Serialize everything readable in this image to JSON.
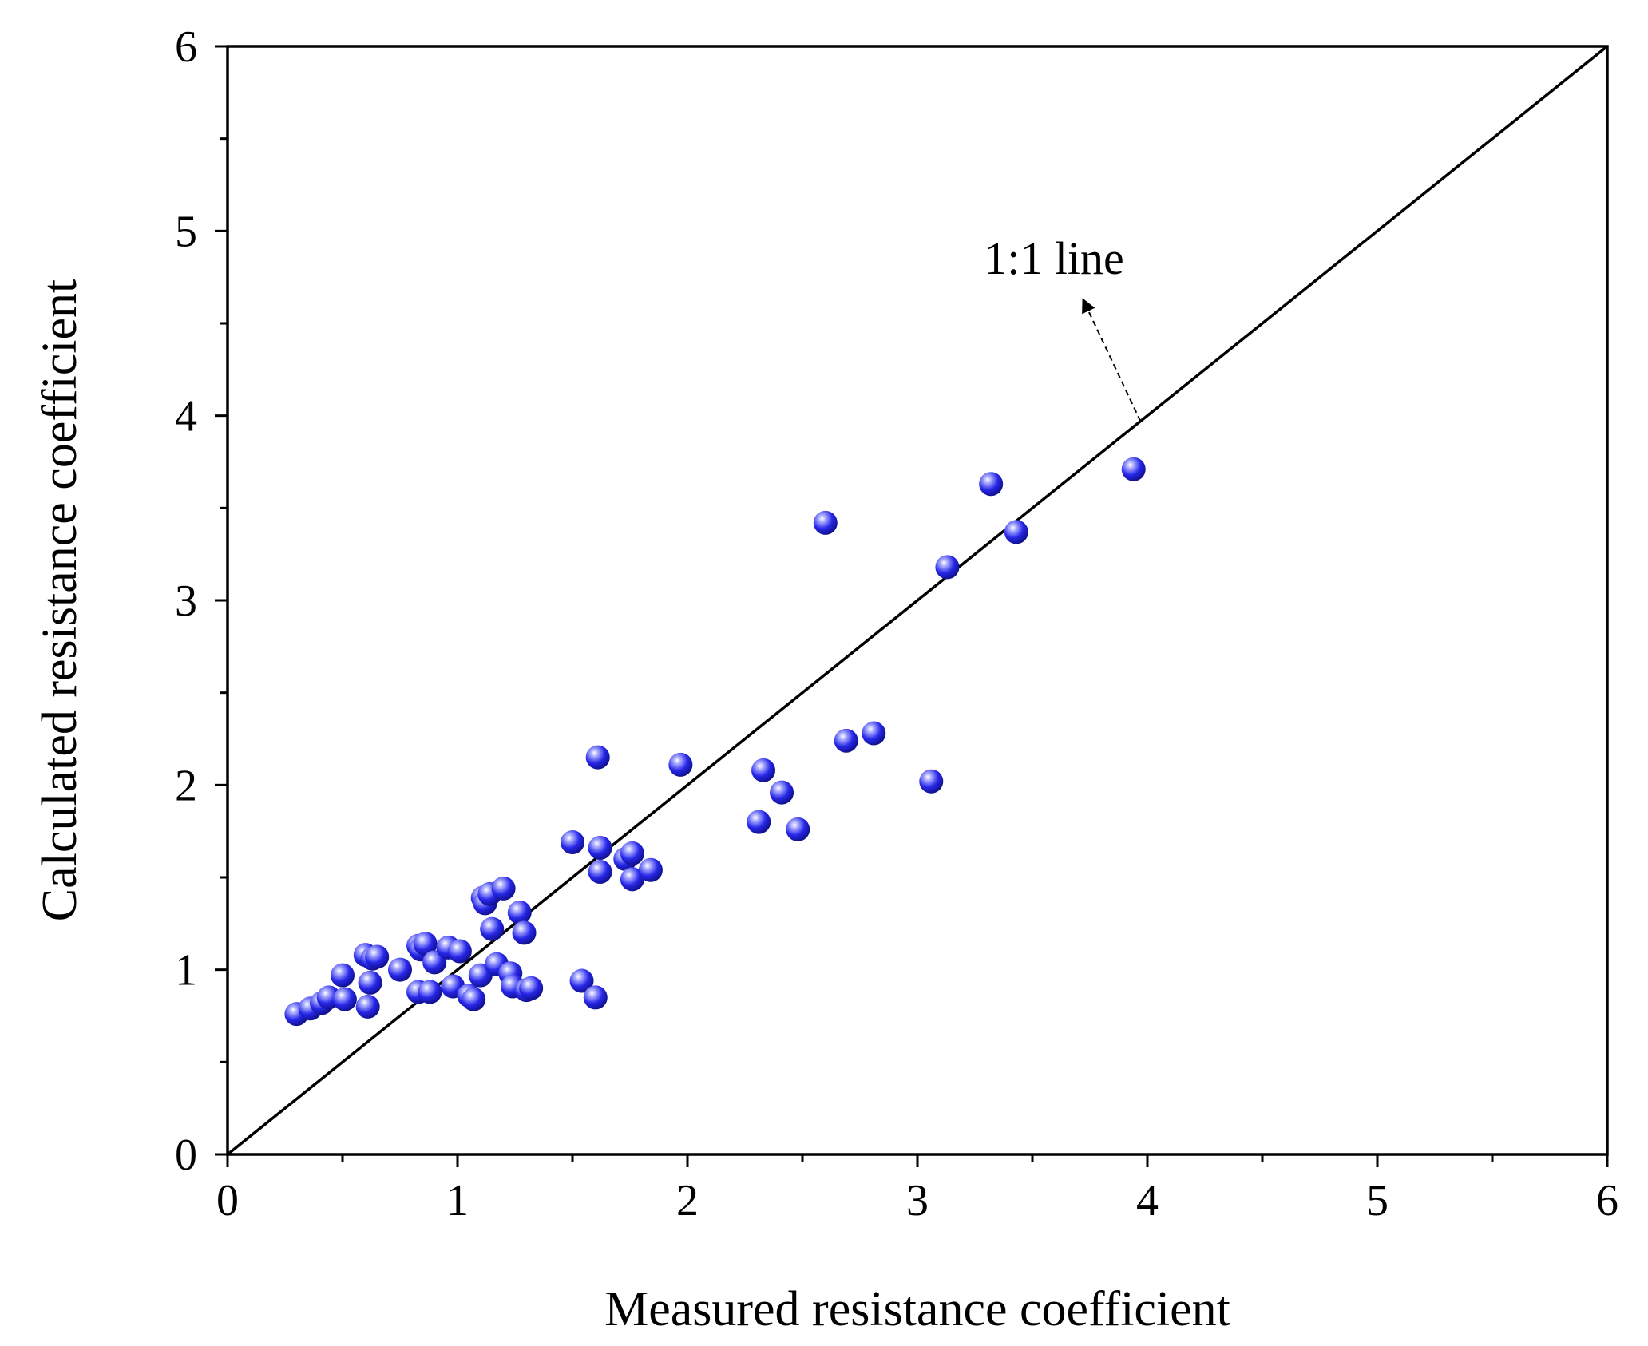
{
  "chart_data": {
    "type": "scatter",
    "title": "",
    "xlabel": "Measured resistance coefficient",
    "ylabel": "Calculated resistance coefficient",
    "xlim": [
      0,
      6
    ],
    "ylim": [
      0,
      6
    ],
    "xticks": [
      0,
      1,
      2,
      3,
      4,
      5,
      6
    ],
    "yticks": [
      0,
      1,
      2,
      3,
      4,
      5,
      6
    ],
    "xtick_labels": [
      "0",
      "1",
      "2",
      "3",
      "4",
      "5",
      "6"
    ],
    "ytick_labels": [
      "0",
      "1",
      "2",
      "3",
      "4",
      "5",
      "6"
    ],
    "minor_ticks": [
      0.5,
      1.5,
      2.5,
      3.5,
      4.5,
      5.5
    ],
    "grid": false,
    "reference_line": {
      "name": "1:1 line",
      "from": [
        0,
        0
      ],
      "to": [
        6,
        6
      ]
    },
    "annotation": {
      "text": "1:1 line",
      "arrow_from": [
        3.97,
        3.97
      ],
      "arrow_to": [
        3.72,
        4.63
      ]
    },
    "marker_color": "#2626e8",
    "series": [
      {
        "name": "data",
        "points": [
          [
            0.3,
            0.76
          ],
          [
            0.36,
            0.79
          ],
          [
            0.41,
            0.82
          ],
          [
            0.44,
            0.85
          ],
          [
            0.51,
            0.84
          ],
          [
            0.5,
            0.97
          ],
          [
            0.6,
            1.08
          ],
          [
            0.63,
            1.06
          ],
          [
            0.65,
            1.07
          ],
          [
            0.62,
            0.93
          ],
          [
            0.61,
            0.8
          ],
          [
            0.75,
            1.0
          ],
          [
            0.83,
            0.88
          ],
          [
            0.83,
            1.13
          ],
          [
            0.84,
            1.11
          ],
          [
            0.86,
            1.14
          ],
          [
            0.88,
            0.88
          ],
          [
            0.9,
            1.04
          ],
          [
            0.96,
            1.12
          ],
          [
            0.98,
            0.91
          ],
          [
            1.01,
            1.1
          ],
          [
            1.05,
            0.86
          ],
          [
            1.07,
            0.84
          ],
          [
            1.1,
            0.97
          ],
          [
            1.11,
            1.39
          ],
          [
            1.12,
            1.36
          ],
          [
            1.14,
            1.41
          ],
          [
            1.15,
            1.22
          ],
          [
            1.17,
            1.03
          ],
          [
            1.2,
            1.44
          ],
          [
            1.23,
            0.98
          ],
          [
            1.24,
            0.91
          ],
          [
            1.27,
            1.31
          ],
          [
            1.29,
            1.2
          ],
          [
            1.3,
            0.89
          ],
          [
            1.32,
            0.9
          ],
          [
            1.5,
            1.69
          ],
          [
            1.54,
            0.94
          ],
          [
            1.6,
            0.85
          ],
          [
            1.61,
            2.15
          ],
          [
            1.62,
            1.66
          ],
          [
            1.62,
            1.53
          ],
          [
            1.73,
            1.6
          ],
          [
            1.76,
            1.63
          ],
          [
            1.76,
            1.49
          ],
          [
            1.84,
            1.54
          ],
          [
            1.97,
            2.11
          ],
          [
            2.31,
            1.8
          ],
          [
            2.33,
            2.08
          ],
          [
            2.41,
            1.96
          ],
          [
            2.48,
            1.76
          ],
          [
            2.6,
            3.42
          ],
          [
            2.69,
            2.24
          ],
          [
            2.81,
            2.28
          ],
          [
            3.06,
            2.02
          ],
          [
            3.13,
            3.18
          ],
          [
            3.32,
            3.63
          ],
          [
            3.43,
            3.37
          ],
          [
            3.94,
            3.71
          ]
        ]
      }
    ]
  }
}
